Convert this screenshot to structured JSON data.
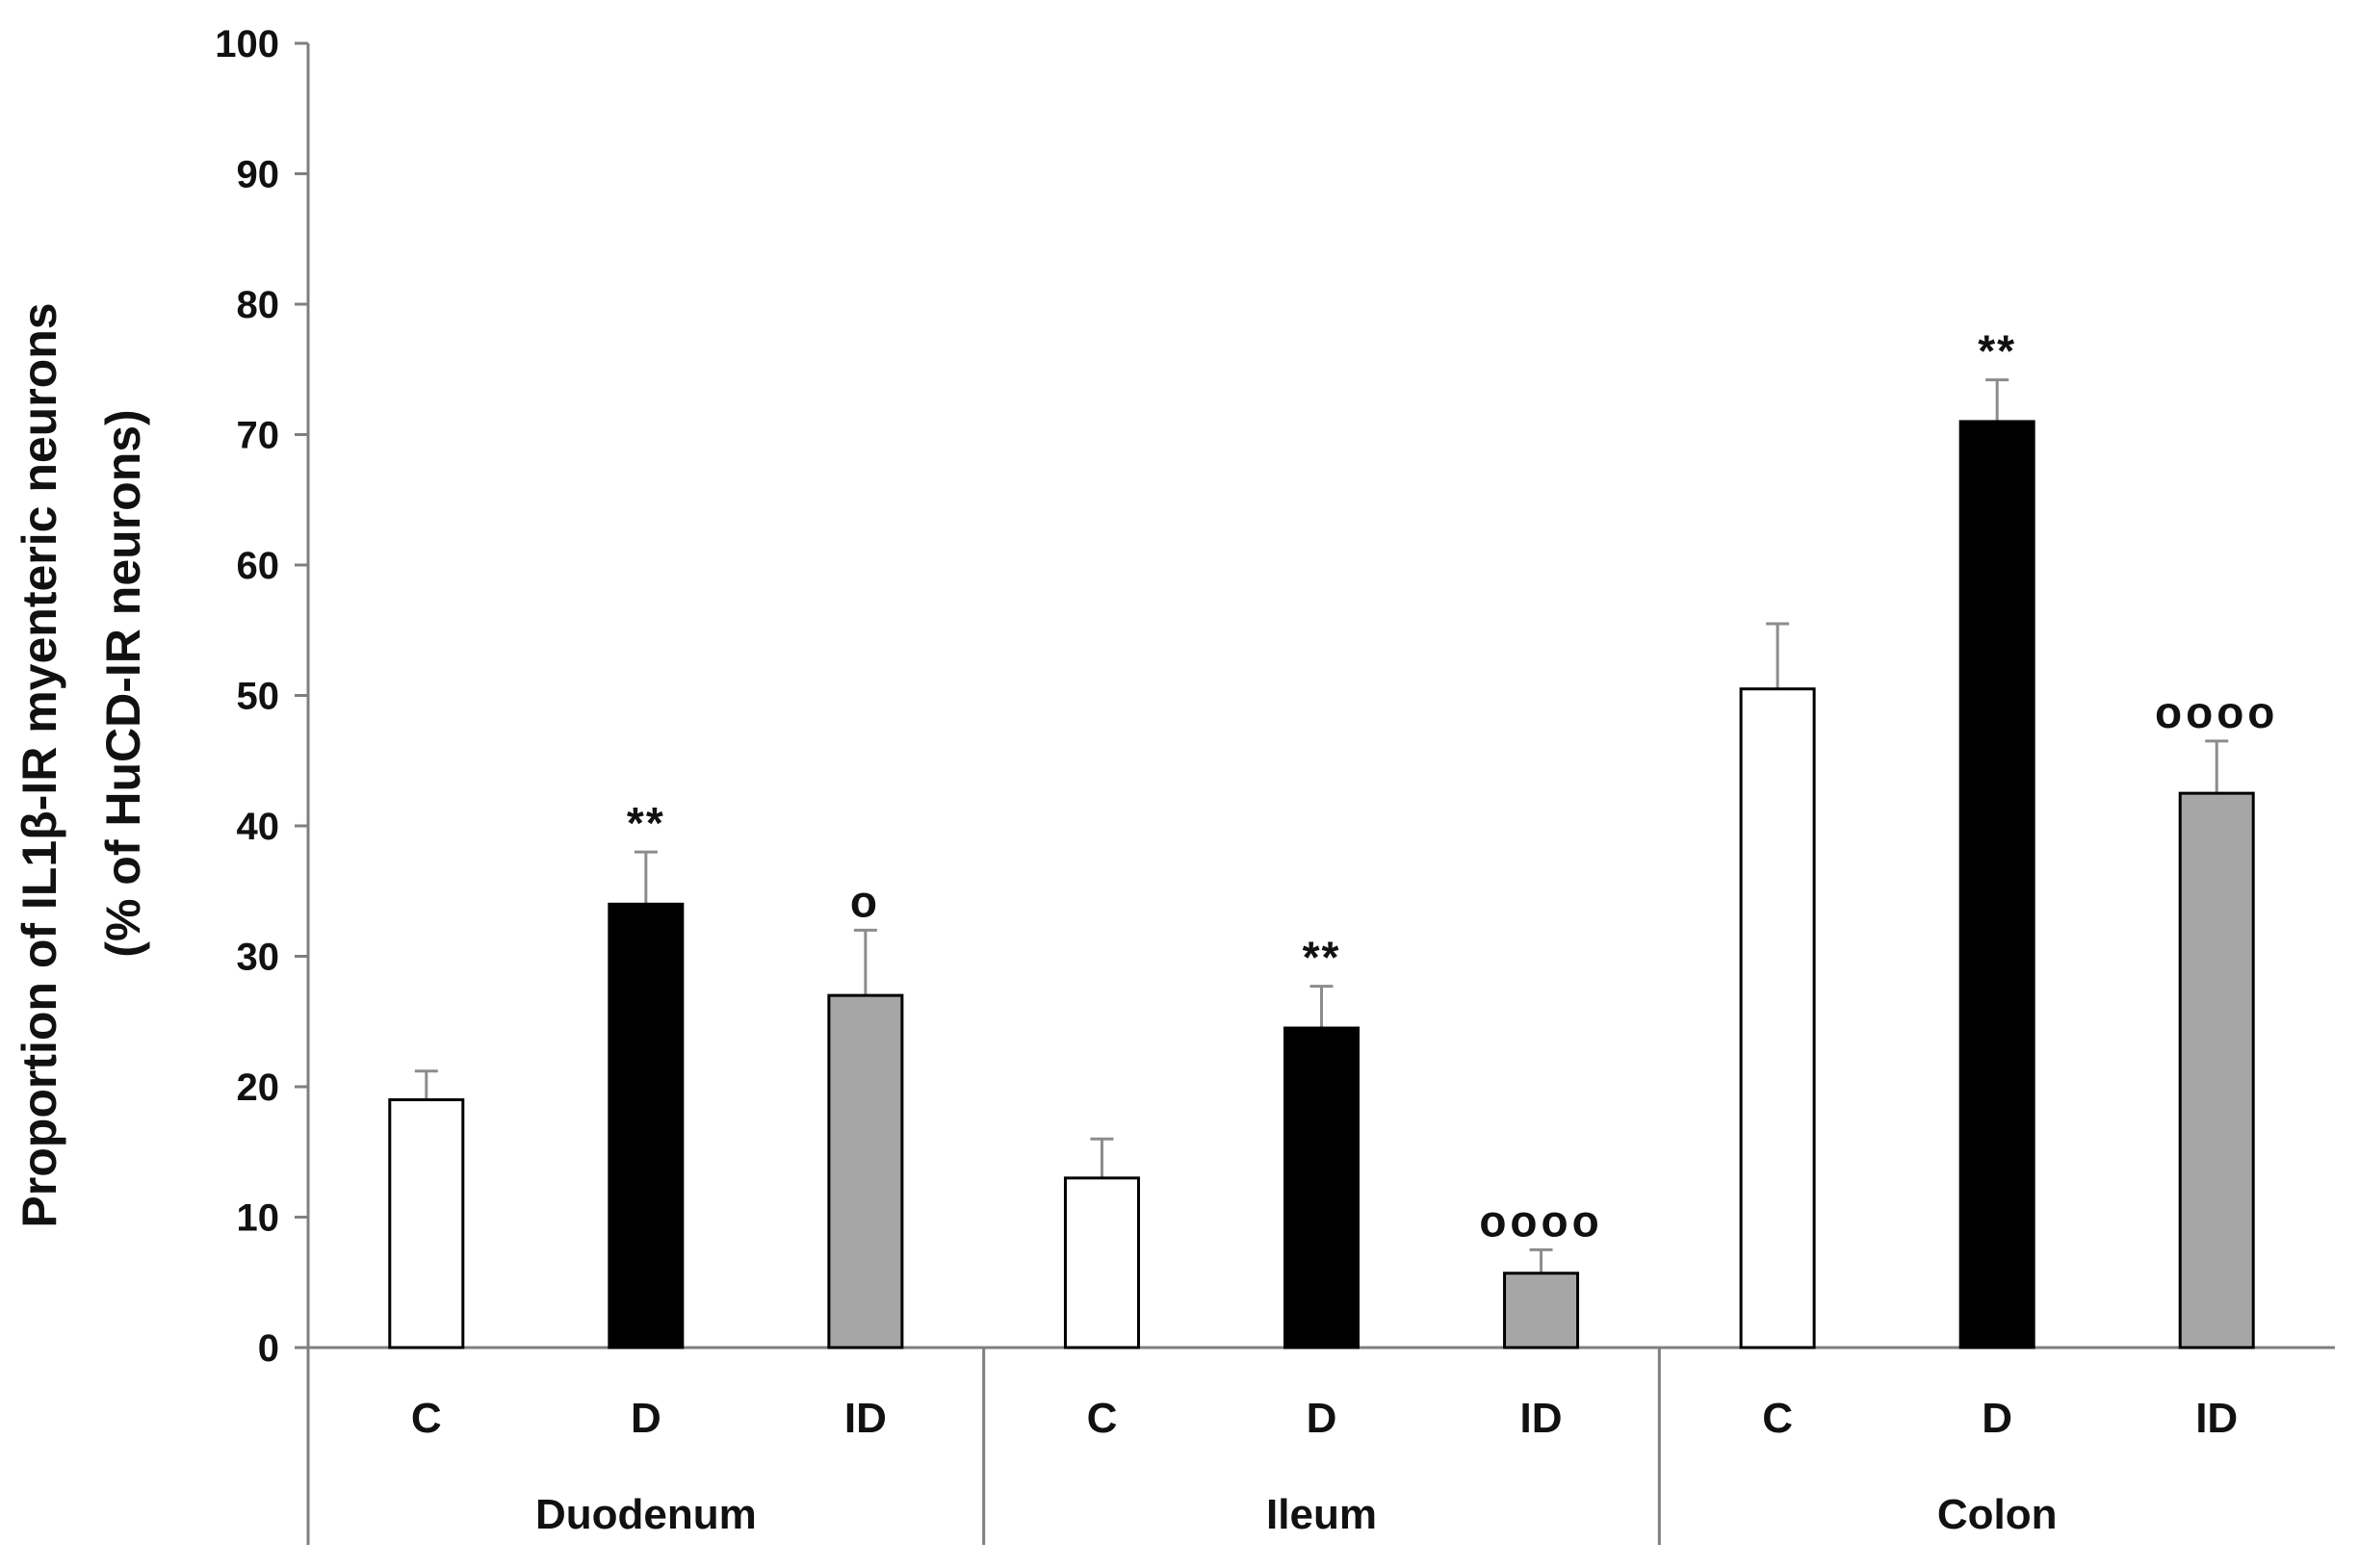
{
  "chart_data": {
    "type": "bar",
    "title": "",
    "ylabel_line1": "Proportion of IL1β-IR myenteric neurons",
    "ylabel_line2": "(% of HuCD-IR neurons)",
    "xlabel": "",
    "ylim": [
      0,
      100
    ],
    "yticks": [
      "0",
      "10",
      "20",
      "30",
      "40",
      "50",
      "60",
      "70",
      "80",
      "90",
      "100"
    ],
    "grid": false,
    "groups": [
      {
        "name": "Duodenum",
        "bars": [
          {
            "category": "C",
            "value": 19,
            "error": 2.2,
            "color": "#ffffff",
            "sig": ""
          },
          {
            "category": "D",
            "value": 34,
            "error": 4.0,
            "color": "#000000",
            "sig": "**"
          },
          {
            "category": "ID",
            "value": 27,
            "error": 5.0,
            "color": "#a6a6a6",
            "sig": "o"
          }
        ]
      },
      {
        "name": "Ileum",
        "bars": [
          {
            "category": "C",
            "value": 13,
            "error": 3.0,
            "color": "#ffffff",
            "sig": ""
          },
          {
            "category": "D",
            "value": 24.5,
            "error": 3.2,
            "color": "#000000",
            "sig": "**"
          },
          {
            "category": "ID",
            "value": 5.7,
            "error": 1.8,
            "color": "#a6a6a6",
            "sig": "oooo"
          }
        ]
      },
      {
        "name": "Colon",
        "bars": [
          {
            "category": "C",
            "value": 50.5,
            "error": 5.0,
            "color": "#ffffff",
            "sig": ""
          },
          {
            "category": "D",
            "value": 71,
            "error": 3.2,
            "color": "#000000",
            "sig": "**"
          },
          {
            "category": "ID",
            "value": 42.5,
            "error": 4.0,
            "color": "#a6a6a6",
            "sig": "oooo"
          }
        ]
      }
    ]
  }
}
